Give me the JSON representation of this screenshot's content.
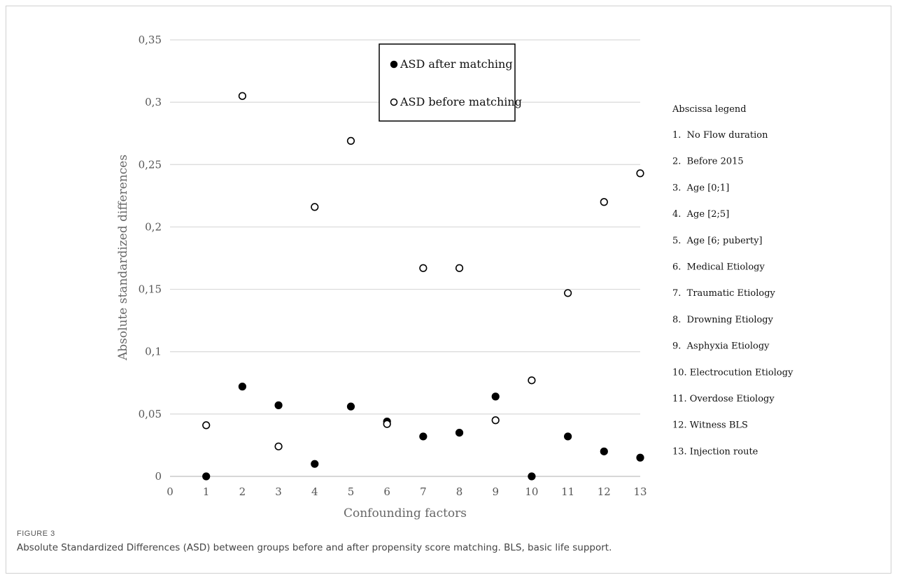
{
  "chart_data": {
    "type": "scatter",
    "title": "",
    "xlabel": "Confounding factors",
    "ylabel": "Absolute standardized differences",
    "xlim": [
      0,
      13
    ],
    "ylim": [
      0,
      0.35
    ],
    "x_ticks": [
      "0",
      "1",
      "2",
      "3",
      "4",
      "5",
      "6",
      "7",
      "8",
      "9",
      "10",
      "11",
      "12",
      "13"
    ],
    "y_ticks": [
      {
        "value": 0,
        "label": "0"
      },
      {
        "value": 0.05,
        "label": "0,05"
      },
      {
        "value": 0.1,
        "label": "0,1"
      },
      {
        "value": 0.15,
        "label": "0,15"
      },
      {
        "value": 0.2,
        "label": "0,2"
      },
      {
        "value": 0.25,
        "label": "0,25"
      },
      {
        "value": 0.3,
        "label": "0,3"
      },
      {
        "value": 0.35,
        "label": "0,35"
      }
    ],
    "grid": "horizontal",
    "legend_position": "top-center",
    "x": [
      1,
      2,
      3,
      4,
      5,
      6,
      7,
      8,
      9,
      10,
      11,
      12,
      13
    ],
    "series": [
      {
        "name": "ASD after matching",
        "marker": "filled-circle",
        "color": "#000000",
        "values": [
          0.0,
          0.072,
          0.057,
          0.01,
          0.056,
          0.044,
          0.032,
          0.035,
          0.064,
          0.0,
          0.032,
          0.02,
          0.015
        ]
      },
      {
        "name": "ASD before matching",
        "marker": "open-circle",
        "color": "#000000",
        "values": [
          0.041,
          0.305,
          0.024,
          0.216,
          0.269,
          0.042,
          0.167,
          0.167,
          0.045,
          0.077,
          0.147,
          0.22,
          0.243
        ]
      }
    ]
  },
  "abscissa_legend": {
    "title": "Abscissa legend",
    "items": [
      "1.  No Flow duration",
      "2.  Before 2015",
      "3.  Age [0;1]",
      "4.  Age [2;5]",
      "5.  Age [6; puberty]",
      "6.  Medical Etiology",
      "7.  Traumatic Etiology",
      "8.  Drowning Etiology",
      "9.  Asphyxia Etiology",
      "10. Electrocution Etiology",
      "11. Overdose Etiology",
      "12. Witness BLS",
      "13. Injection route"
    ]
  },
  "figure": {
    "label": "FIGURE 3",
    "caption": "Absolute Standardized Differences (ASD) between groups before and after propensity score matching. BLS, basic life support."
  }
}
